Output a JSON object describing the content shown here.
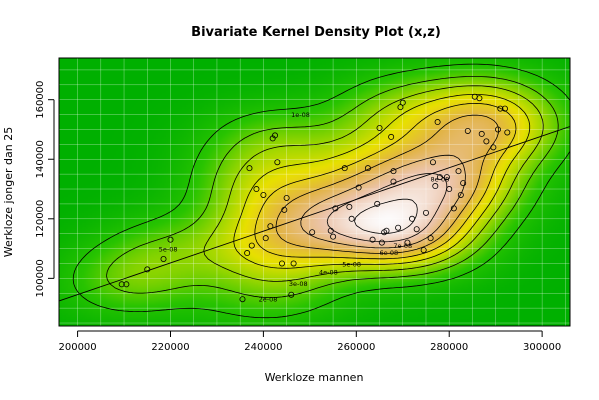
{
  "chart_data": {
    "type": "contour-density",
    "title": "Bivariate Kernel Density Plot (x,z)",
    "xlabel": "Werkloze mannen",
    "ylabel": "Werkloze jonger dan 25",
    "xlim": [
      196000,
      306000
    ],
    "ylim": [
      84000,
      174000
    ],
    "x_ticks": [
      200000,
      220000,
      240000,
      260000,
      280000,
      300000
    ],
    "x_tick_labels": [
      "200000",
      "220000",
      "240000",
      "260000",
      "280000",
      "300000"
    ],
    "y_ticks": [
      100000,
      120000,
      140000,
      160000
    ],
    "y_tick_labels": [
      "100000",
      "120000",
      "140000",
      "160000"
    ],
    "grid": true,
    "colors": {
      "low": "#00b000",
      "mid": "#e8e000",
      "high": "#ffffff",
      "grid": "#ffffff",
      "contour": "#000000",
      "points": "#000000",
      "regression": "#000000"
    },
    "contour_labels": [
      {
        "text": "1e-08",
        "x": 248000,
        "y": 155000
      },
      {
        "text": "2e-08",
        "x": 241000,
        "y": 93000
      },
      {
        "text": "3e-08",
        "x": 247500,
        "y": 98200
      },
      {
        "text": "4e-08",
        "x": 254000,
        "y": 102000
      },
      {
        "text": "5e-08",
        "x": 259000,
        "y": 104800
      },
      {
        "text": "6e-08",
        "x": 267000,
        "y": 108500
      },
      {
        "text": "7e-08",
        "x": 270000,
        "y": 111000
      },
      {
        "text": "8e-08",
        "x": 278000,
        "y": 133200
      },
      {
        "text": "5e-08",
        "x": 219500,
        "y": 109800
      }
    ],
    "regression_line": {
      "x": [
        196000,
        306000
      ],
      "y": [
        92400,
        151000
      ]
    },
    "points": {
      "x": [
        209500,
        210500,
        215000,
        218500,
        220000,
        235500,
        236500,
        237000,
        237500,
        238500,
        240000,
        240500,
        241500,
        242000,
        242500,
        243000,
        244000,
        244500,
        245000,
        246000,
        246500,
        250500,
        254500,
        255000,
        255500,
        257500,
        258500,
        259000,
        260500,
        262500,
        263500,
        264500,
        265000,
        265500,
        266000,
        266500,
        267500,
        268000,
        268000,
        269000,
        269500,
        270000,
        271000,
        272000,
        273000,
        274500,
        275000,
        276000,
        276500,
        277000,
        277500,
        278000,
        279500,
        280000,
        281000,
        282000,
        282500,
        283000,
        284000,
        285500,
        286500,
        287000,
        288000,
        289500,
        290500,
        291000,
        292000,
        292500
      ],
      "y": [
        98000,
        98000,
        103000,
        106500,
        113000,
        93000,
        108500,
        137000,
        111000,
        130000,
        128000,
        113500,
        117500,
        147000,
        148000,
        139000,
        105000,
        123000,
        127000,
        94500,
        105000,
        115500,
        116000,
        114000,
        123500,
        137000,
        124000,
        120000,
        130500,
        137000,
        113000,
        125000,
        150500,
        112000,
        115500,
        116000,
        147500,
        132500,
        136000,
        117000,
        157500,
        159000,
        112000,
        120000,
        116500,
        109500,
        122000,
        113500,
        139000,
        131000,
        152500,
        134000,
        134000,
        130000,
        123500,
        136000,
        128000,
        132000,
        149500,
        161000,
        160500,
        148500,
        146000,
        144000,
        150000,
        157000,
        157000,
        149000
      ]
    }
  }
}
